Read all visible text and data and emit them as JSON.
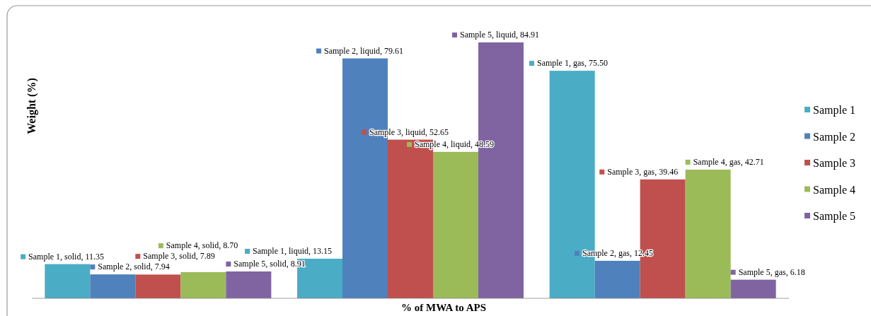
{
  "chart_data": {
    "type": "bar",
    "xlabel": "% of MWA to APS",
    "ylabel": "Weight (%)",
    "categories": [
      null,
      null,
      null
    ],
    "legend": "right",
    "series": [
      {
        "name": "Sample 1",
        "color": "#4bacc6",
        "values": [
          11.35,
          13.15,
          75.5
        ],
        "value_labels": [
          "Sample 1, solid, 11.35",
          "Sample 1, liquid, 13.15",
          "Sample 1, gas, 75.50"
        ]
      },
      {
        "name": "Sample 2",
        "color": "#4f81bd",
        "values": [
          7.94,
          79.61,
          12.45
        ],
        "value_labels": [
          "Sample 2, solid, 7.94",
          "Sample 2, liquid, 79.61",
          "Sample 2, gas, 12.45"
        ]
      },
      {
        "name": "Sample 3",
        "color": "#c0504d",
        "values": [
          7.89,
          52.65,
          39.46
        ],
        "value_labels": [
          "Sample 3, solid, 7.89",
          "Sample 3, liquid, 52.65",
          "Sample 3, gas, 39.46"
        ]
      },
      {
        "name": "Sample 4",
        "color": "#9bbb59",
        "values": [
          8.7,
          48.59,
          42.71
        ],
        "value_labels": [
          "Sample 4, solid, 8.70",
          "Sample 4, liquid, 48.59",
          "Sample 4, gas, 42.71"
        ]
      },
      {
        "name": "Sample 5",
        "color": "#8064a2",
        "values": [
          8.91,
          84.91,
          6.18
        ],
        "value_labels": [
          "Sample 5, solid, 8.91",
          "Sample 5, liquid, 84.91",
          "Sample 5, gas, 6.18"
        ]
      }
    ]
  }
}
